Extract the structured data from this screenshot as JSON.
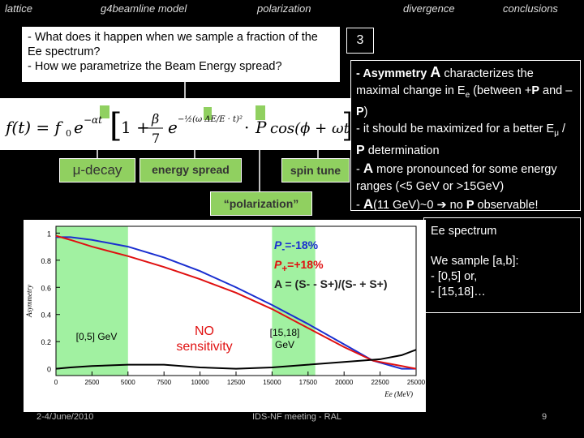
{
  "nav": {
    "items": [
      "lattice",
      "g4beamline model",
      "polarization",
      "divergence",
      "conclusions"
    ]
  },
  "questions": {
    "q1": "- What does it happen when we sample a fraction of the Ee spectrum?",
    "q2": "- How we parametrize the Beam Energy spread?"
  },
  "badge": "3",
  "formula_labels": {
    "mu_decay": "μ-decay",
    "energy_spread": "energy spread",
    "spin_tune": "spin tune",
    "polarization": "“polarization”"
  },
  "right_box": {
    "line1_a": "- Asymmetry ",
    "line1_b": "A",
    "line1_c": " characterizes the maximal change in E",
    "line1_sub": "e",
    "line1_d": " (between +",
    "line1_e": "P",
    "line1_f": " and –",
    "line1_g": "P",
    "line1_h": ")",
    "line2": "- it should be maximized for a better E",
    "line2_sub": "μ",
    "line2_b": " / ",
    "line2_c": "P",
    "line2_d": " determination",
    "line3_a": "- ",
    "line3_b": "A",
    "line3_c": "  more pronounced for some energy ranges (<5 GeV or >15GeV)",
    "line4_a": "- ",
    "line4_b": "A",
    "line4_c": "(11 GeV)~0 ",
    "line4_arrow": "➔",
    "line4_d": " no ",
    "line4_e": "P",
    "line4_f": " observable!"
  },
  "ee_box": {
    "title": "Ee spectrum",
    "line1": "We sample [a,b]:",
    "line2": "- [0,5] or,",
    "line3": "- [15,18]…"
  },
  "chart_overlay": {
    "label_0_5": "[0,5] GeV",
    "no_sens_1": "NO",
    "no_sens_2": "sensitivity",
    "label_15_18_a": "[15,18]",
    "label_15_18_b": "GeV",
    "legend_pminus": "P",
    "legend_pminus_sub": "-",
    "legend_pminus_val": "=-18%",
    "legend_pplus": "P",
    "legend_pplus_sub": "+",
    "legend_pplus_val": "=+18%",
    "legend_formula": "A = (S- - S+)/(S- + S+)"
  },
  "footer": {
    "date": "2-4/June/2010",
    "meeting": "IDS-NF meeting - RAL",
    "page": "9"
  },
  "colors": {
    "green_highlight": "#90ee90",
    "blue_series": "#1a2fd0",
    "red_series": "#e01010",
    "black_series": "#000000"
  },
  "chart_data": {
    "type": "line",
    "ylabel": "Asymmetry",
    "xlabel": "Ee (MeV)",
    "xlim": [
      0,
      25000
    ],
    "ylim": [
      -0.05,
      1.05
    ],
    "xticks": [
      0,
      2500,
      5000,
      7500,
      10000,
      12500,
      15000,
      17500,
      20000,
      22500,
      25000
    ],
    "yticks": [
      0,
      0.2,
      0.4,
      0.6,
      0.8,
      1
    ],
    "highlight_ranges": [
      [
        0,
        5000
      ],
      [
        15000,
        18000
      ]
    ],
    "series": [
      {
        "name": "P-=-18%",
        "color": "blue",
        "x": [
          0,
          1000,
          2500,
          5000,
          7500,
          10000,
          12500,
          15000,
          17500,
          20000,
          22000,
          24000,
          25000
        ],
        "y": [
          0.97,
          0.97,
          0.95,
          0.9,
          0.82,
          0.72,
          0.6,
          0.47,
          0.33,
          0.18,
          0.06,
          0.0,
          0.0
        ]
      },
      {
        "name": "P+=+18%",
        "color": "red",
        "x": [
          0,
          1000,
          2500,
          5000,
          7500,
          10000,
          12500,
          15000,
          17500,
          20000,
          22000,
          24000,
          25000
        ],
        "y": [
          0.98,
          0.95,
          0.9,
          0.83,
          0.75,
          0.66,
          0.56,
          0.44,
          0.3,
          0.16,
          0.06,
          0.02,
          0.0
        ]
      },
      {
        "name": "A",
        "color": "black",
        "x": [
          0,
          1000,
          2500,
          5000,
          7500,
          10000,
          12500,
          15000,
          17500,
          20000,
          22500,
          24000,
          25000
        ],
        "y": [
          0.0,
          0.01,
          0.02,
          0.03,
          0.03,
          0.01,
          0.0,
          0.01,
          0.03,
          0.05,
          0.07,
          0.1,
          0.14
        ]
      }
    ]
  }
}
